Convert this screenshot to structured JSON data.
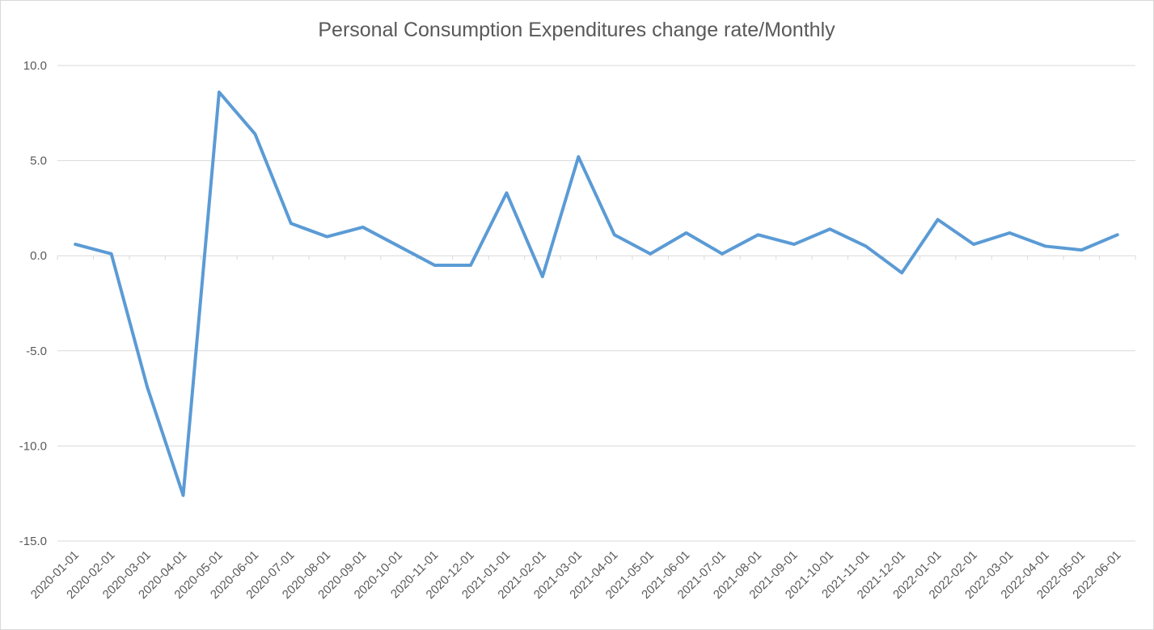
{
  "chart_data": {
    "type": "line",
    "title": "Personal Consumption Expenditures change rate/Monthly",
    "xlabel": "",
    "ylabel": "",
    "ylim": [
      -15,
      10
    ],
    "yticks": [
      "10.0",
      "5.0",
      "0.0",
      "-5.0",
      "-10.0",
      "-15.0"
    ],
    "ytick_values": [
      10,
      5,
      0,
      -5,
      -10,
      -15
    ],
    "grid": true,
    "legend": "none",
    "categories": [
      "2020-01-01",
      "2020-02-01",
      "2020-03-01",
      "2020-04-01",
      "2020-05-01",
      "2020-06-01",
      "2020-07-01",
      "2020-08-01",
      "2020-09-01",
      "2020-10-01",
      "2020-11-01",
      "2020-12-01",
      "2021-01-01",
      "2021-02-01",
      "2021-03-01",
      "2021-04-01",
      "2021-05-01",
      "2021-06-01",
      "2021-07-01",
      "2021-08-01",
      "2021-09-01",
      "2021-10-01",
      "2021-11-01",
      "2021-12-01",
      "2022-01-01",
      "2022-02-01",
      "2022-03-01",
      "2022-04-01",
      "2022-05-01",
      "2022-06-01"
    ],
    "series": [
      {
        "color": "#5b9bd5",
        "values": [
          0.6,
          0.1,
          -6.9,
          -12.6,
          8.6,
          6.4,
          1.7,
          1.0,
          1.5,
          0.5,
          -0.5,
          -0.5,
          3.3,
          -1.1,
          5.2,
          1.1,
          0.1,
          1.2,
          0.1,
          1.1,
          0.6,
          1.4,
          0.5,
          -0.9,
          1.9,
          0.6,
          1.2,
          0.5,
          0.3,
          1.1
        ]
      }
    ]
  }
}
